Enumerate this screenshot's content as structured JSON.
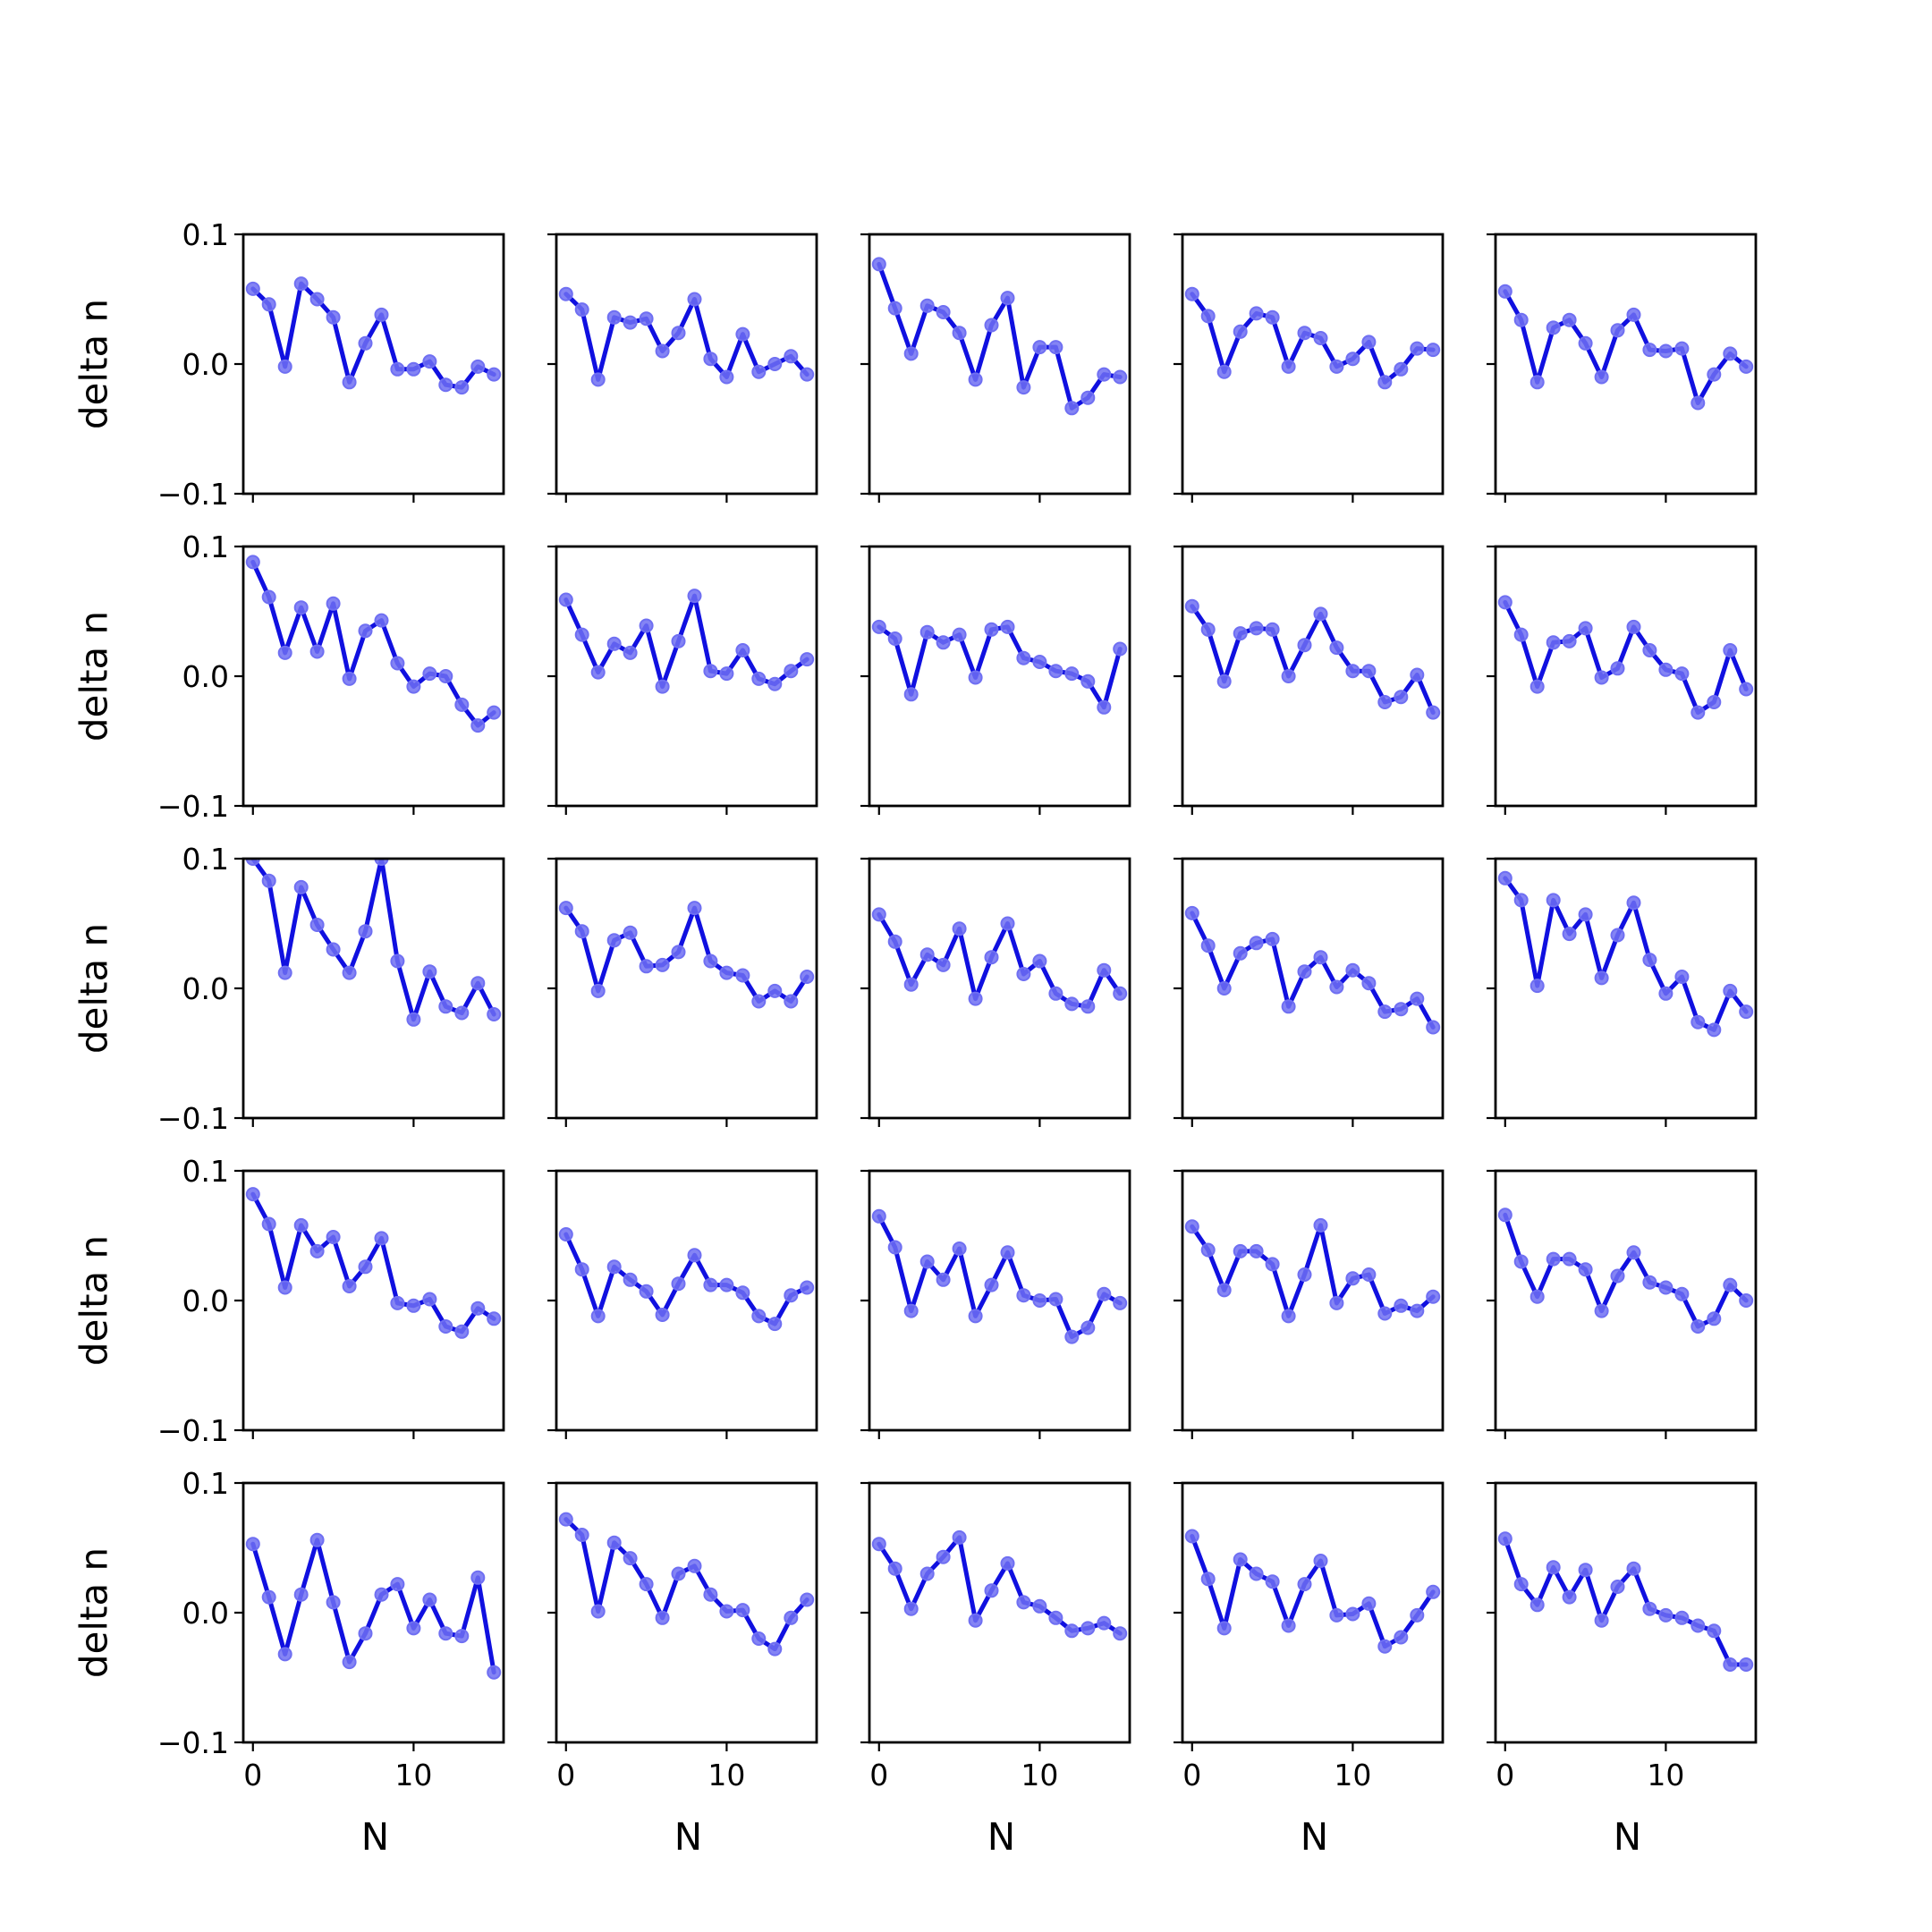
{
  "chart_data": {
    "type": "line",
    "layout": {
      "rows": 5,
      "cols": 5
    },
    "x": [
      0,
      1,
      2,
      3,
      4,
      5,
      6,
      7,
      8,
      9,
      10,
      11,
      12,
      13,
      14,
      15
    ],
    "xlabel": "N",
    "ylabel": "delta n",
    "xlim": [
      -0.6,
      15.6
    ],
    "ylim": [
      -0.1,
      0.1
    ],
    "xticks": [
      0,
      10
    ],
    "xtick_labels": [
      "0",
      "10"
    ],
    "yticks": [
      -0.1,
      0.0,
      0.1
    ],
    "ytick_labels": [
      "−0.1",
      "0.0",
      "0.1"
    ],
    "line_color": "#1010e0",
    "marker_color": "#6f6ff2",
    "grid": false,
    "panels": [
      [
        0.058,
        0.046,
        -0.002,
        0.062,
        0.05,
        0.036,
        -0.014,
        0.016,
        0.038,
        -0.004,
        -0.004,
        0.002,
        -0.016,
        -0.018,
        -0.002,
        -0.008
      ],
      [
        0.054,
        0.042,
        -0.012,
        0.036,
        0.032,
        0.035,
        0.01,
        0.024,
        0.05,
        0.004,
        -0.01,
        0.023,
        -0.006,
        0.0,
        0.006,
        -0.008
      ],
      [
        0.077,
        0.043,
        0.008,
        0.045,
        0.04,
        0.024,
        -0.012,
        0.03,
        0.051,
        -0.018,
        0.013,
        0.013,
        -0.034,
        -0.026,
        -0.008,
        -0.01
      ],
      [
        0.054,
        0.037,
        -0.006,
        0.025,
        0.039,
        0.036,
        -0.002,
        0.024,
        0.02,
        -0.002,
        0.004,
        0.017,
        -0.014,
        -0.004,
        0.012,
        0.011
      ],
      [
        0.056,
        0.034,
        -0.014,
        0.028,
        0.034,
        0.016,
        -0.01,
        0.026,
        0.038,
        0.011,
        0.01,
        0.012,
        -0.03,
        -0.008,
        0.008,
        -0.002
      ],
      [
        0.088,
        0.061,
        0.018,
        0.053,
        0.019,
        0.056,
        -0.002,
        0.035,
        0.043,
        0.01,
        -0.008,
        0.002,
        0.0,
        -0.022,
        -0.038,
        -0.028
      ],
      [
        0.059,
        0.032,
        0.003,
        0.025,
        0.018,
        0.039,
        -0.008,
        0.027,
        0.062,
        0.004,
        0.002,
        0.02,
        -0.002,
        -0.006,
        0.004,
        0.013
      ],
      [
        0.038,
        0.029,
        -0.014,
        0.034,
        0.026,
        0.032,
        -0.001,
        0.036,
        0.038,
        0.014,
        0.011,
        0.004,
        0.002,
        -0.004,
        -0.024,
        0.021
      ],
      [
        0.054,
        0.036,
        -0.004,
        0.033,
        0.037,
        0.036,
        0.0,
        0.024,
        0.048,
        0.022,
        0.004,
        0.004,
        -0.02,
        -0.016,
        0.001,
        -0.028
      ],
      [
        0.057,
        0.032,
        -0.008,
        0.026,
        0.027,
        0.037,
        -0.001,
        0.006,
        0.038,
        0.02,
        0.005,
        0.002,
        -0.028,
        -0.02,
        0.02,
        -0.01
      ],
      [
        0.1,
        0.083,
        0.012,
        0.078,
        0.049,
        0.03,
        0.012,
        0.044,
        0.1,
        0.021,
        -0.024,
        0.013,
        -0.014,
        -0.019,
        0.004,
        -0.02
      ],
      [
        0.062,
        0.044,
        -0.002,
        0.037,
        0.043,
        0.017,
        0.018,
        0.028,
        0.062,
        0.021,
        0.012,
        0.01,
        -0.01,
        -0.002,
        -0.01,
        0.009
      ],
      [
        0.057,
        0.036,
        0.003,
        0.026,
        0.018,
        0.046,
        -0.008,
        0.024,
        0.05,
        0.011,
        0.021,
        -0.004,
        -0.012,
        -0.014,
        0.014,
        -0.004
      ],
      [
        0.058,
        0.033,
        0.0,
        0.027,
        0.035,
        0.038,
        -0.014,
        0.013,
        0.024,
        0.001,
        0.014,
        0.004,
        -0.018,
        -0.016,
        -0.008,
        -0.03
      ],
      [
        0.085,
        0.068,
        0.002,
        0.068,
        0.042,
        0.057,
        0.008,
        0.041,
        0.066,
        0.022,
        -0.004,
        0.009,
        -0.026,
        -0.032,
        -0.002,
        -0.018
      ],
      [
        0.082,
        0.059,
        0.01,
        0.058,
        0.038,
        0.049,
        0.011,
        0.026,
        0.048,
        -0.002,
        -0.004,
        0.001,
        -0.02,
        -0.024,
        -0.006,
        -0.014
      ],
      [
        0.051,
        0.024,
        -0.012,
        0.026,
        0.016,
        0.007,
        -0.011,
        0.013,
        0.035,
        0.012,
        0.012,
        0.006,
        -0.012,
        -0.018,
        0.004,
        0.01
      ],
      [
        0.065,
        0.041,
        -0.008,
        0.03,
        0.016,
        0.04,
        -0.012,
        0.012,
        0.037,
        0.004,
        0.0,
        0.001,
        -0.028,
        -0.021,
        0.005,
        -0.002
      ],
      [
        0.057,
        0.039,
        0.008,
        0.038,
        0.038,
        0.028,
        -0.012,
        0.02,
        0.058,
        -0.002,
        0.017,
        0.02,
        -0.01,
        -0.004,
        -0.008,
        0.003
      ],
      [
        0.066,
        0.03,
        0.003,
        0.032,
        0.032,
        0.024,
        -0.008,
        0.019,
        0.037,
        0.014,
        0.01,
        0.005,
        -0.02,
        -0.014,
        0.012,
        0.0
      ],
      [
        0.053,
        0.012,
        -0.032,
        0.014,
        0.056,
        0.008,
        -0.038,
        -0.016,
        0.014,
        0.022,
        -0.012,
        0.01,
        -0.016,
        -0.018,
        0.027,
        -0.046
      ],
      [
        0.072,
        0.06,
        0.001,
        0.054,
        0.042,
        0.022,
        -0.004,
        0.03,
        0.036,
        0.014,
        0.001,
        0.002,
        -0.02,
        -0.028,
        -0.004,
        0.01
      ],
      [
        0.053,
        0.034,
        0.003,
        0.03,
        0.043,
        0.058,
        -0.006,
        0.017,
        0.038,
        0.008,
        0.005,
        -0.004,
        -0.014,
        -0.012,
        -0.008,
        -0.016
      ],
      [
        0.059,
        0.026,
        -0.012,
        0.041,
        0.03,
        0.024,
        -0.01,
        0.022,
        0.04,
        -0.002,
        -0.001,
        0.007,
        -0.026,
        -0.019,
        -0.002,
        0.016
      ],
      [
        0.057,
        0.022,
        0.006,
        0.035,
        0.012,
        0.033,
        -0.006,
        0.02,
        0.034,
        0.003,
        -0.002,
        -0.004,
        -0.01,
        -0.014,
        -0.04,
        -0.04
      ]
    ]
  }
}
